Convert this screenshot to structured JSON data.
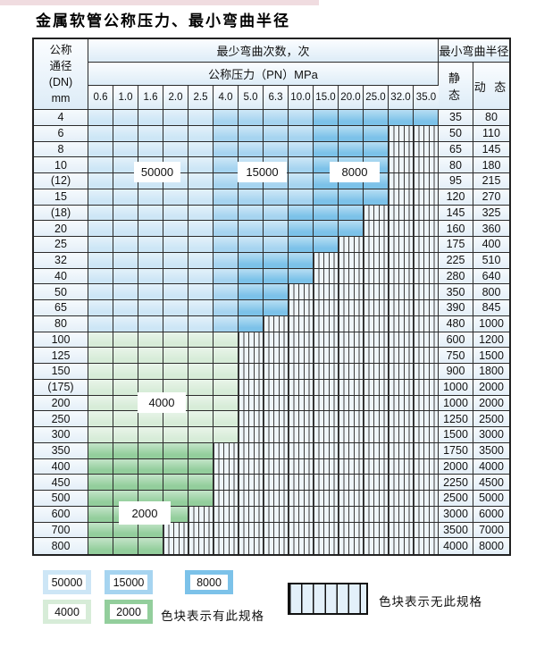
{
  "title": "金属软管公称压力、最小弯曲半径",
  "table": {
    "header": {
      "dn_lines": [
        "公称",
        "通径",
        "(DN)",
        "mm"
      ],
      "bend_cycles": "最少弯曲次数，次",
      "pressure": "公称压力（PN）MPa",
      "pressure_values": [
        "0.6",
        "1.0",
        "1.6",
        "2.0",
        "2.5",
        "4.0",
        "5.0",
        "6.3",
        "10.0",
        "15.0",
        "20.0",
        "25.0",
        "32.0",
        "35.0"
      ],
      "min_radius": "最小弯曲半径",
      "static": "静 态",
      "dynamic": "动 态"
    },
    "labels": {
      "l50000": "50000",
      "l15000": "15000",
      "l8000": "8000",
      "l4000": "4000",
      "l2000": "2000"
    },
    "rows": [
      {
        "dn": "4",
        "segments": [
          [
            "b1",
            5
          ],
          [
            "b2",
            4
          ],
          [
            "b3",
            5
          ]
        ],
        "static": "35",
        "dynamic": "80"
      },
      {
        "dn": "6",
        "segments": [
          [
            "b1",
            5
          ],
          [
            "b2",
            4
          ],
          [
            "b3",
            3
          ],
          [
            "h",
            2
          ]
        ],
        "static": "50",
        "dynamic": "110"
      },
      {
        "dn": "8",
        "segments": [
          [
            "b1",
            5
          ],
          [
            "b2",
            4
          ],
          [
            "b3",
            3
          ],
          [
            "h",
            2
          ]
        ],
        "static": "65",
        "dynamic": "145"
      },
      {
        "dn": "10",
        "segments": [
          [
            "b1",
            5
          ],
          [
            "b2",
            4
          ],
          [
            "b3",
            3
          ],
          [
            "h",
            2
          ]
        ],
        "static": "80",
        "dynamic": "180"
      },
      {
        "dn": "(12)",
        "segments": [
          [
            "b1",
            5
          ],
          [
            "b2",
            4
          ],
          [
            "b3",
            3
          ],
          [
            "h",
            2
          ]
        ],
        "static": "95",
        "dynamic": "215"
      },
      {
        "dn": "15",
        "segments": [
          [
            "b1",
            5
          ],
          [
            "b2",
            4
          ],
          [
            "b3",
            3
          ],
          [
            "h",
            2
          ]
        ],
        "static": "120",
        "dynamic": "270"
      },
      {
        "dn": "(18)",
        "segments": [
          [
            "b1",
            5
          ],
          [
            "b2",
            3
          ],
          [
            "b3",
            3
          ],
          [
            "h",
            3
          ]
        ],
        "static": "145",
        "dynamic": "325"
      },
      {
        "dn": "20",
        "segments": [
          [
            "b1",
            5
          ],
          [
            "b2",
            3
          ],
          [
            "b3",
            3
          ],
          [
            "h",
            3
          ]
        ],
        "static": "160",
        "dynamic": "360"
      },
      {
        "dn": "25",
        "segments": [
          [
            "b1",
            5
          ],
          [
            "b2",
            3
          ],
          [
            "b3",
            2
          ],
          [
            "h",
            4
          ]
        ],
        "static": "175",
        "dynamic": "400"
      },
      {
        "dn": "32",
        "segments": [
          [
            "b1",
            5
          ],
          [
            "b2",
            1
          ],
          [
            "b3",
            3
          ],
          [
            "h",
            5
          ]
        ],
        "static": "225",
        "dynamic": "510"
      },
      {
        "dn": "40",
        "segments": [
          [
            "b1",
            5
          ],
          [
            "b2",
            1
          ],
          [
            "b3",
            3
          ],
          [
            "h",
            5
          ]
        ],
        "static": "280",
        "dynamic": "640"
      },
      {
        "dn": "50",
        "segments": [
          [
            "b1",
            5
          ],
          [
            "b2",
            1
          ],
          [
            "b3",
            2
          ],
          [
            "h",
            6
          ]
        ],
        "static": "350",
        "dynamic": "800"
      },
      {
        "dn": "65",
        "segments": [
          [
            "b1",
            5
          ],
          [
            "b2",
            1
          ],
          [
            "b3",
            2
          ],
          [
            "h",
            6
          ]
        ],
        "static": "390",
        "dynamic": "845"
      },
      {
        "dn": "80",
        "segments": [
          [
            "b1",
            5
          ],
          [
            "b2",
            1
          ],
          [
            "b3",
            1
          ],
          [
            "h",
            7
          ]
        ],
        "static": "480",
        "dynamic": "1000"
      },
      {
        "dn": "100",
        "segments": [
          [
            "g1",
            6
          ],
          [
            "h",
            8
          ]
        ],
        "static": "600",
        "dynamic": "1200"
      },
      {
        "dn": "125",
        "segments": [
          [
            "g1",
            6
          ],
          [
            "h",
            8
          ]
        ],
        "static": "750",
        "dynamic": "1500"
      },
      {
        "dn": "150",
        "segments": [
          [
            "g1",
            6
          ],
          [
            "h",
            8
          ]
        ],
        "static": "900",
        "dynamic": "1800"
      },
      {
        "dn": "(175)",
        "segments": [
          [
            "g1",
            6
          ],
          [
            "h",
            8
          ]
        ],
        "static": "1000",
        "dynamic": "2000"
      },
      {
        "dn": "200",
        "segments": [
          [
            "g1",
            6
          ],
          [
            "h",
            8
          ]
        ],
        "static": "1000",
        "dynamic": "2000"
      },
      {
        "dn": "250",
        "segments": [
          [
            "g1",
            6
          ],
          [
            "h",
            8
          ]
        ],
        "static": "1250",
        "dynamic": "2500"
      },
      {
        "dn": "300",
        "segments": [
          [
            "g1",
            6
          ],
          [
            "h",
            8
          ]
        ],
        "static": "1500",
        "dynamic": "3000"
      },
      {
        "dn": "350",
        "segments": [
          [
            "g2",
            5
          ],
          [
            "h",
            9
          ]
        ],
        "static": "1750",
        "dynamic": "3500"
      },
      {
        "dn": "400",
        "segments": [
          [
            "g2",
            5
          ],
          [
            "h",
            9
          ]
        ],
        "static": "2000",
        "dynamic": "4000"
      },
      {
        "dn": "450",
        "segments": [
          [
            "g2",
            5
          ],
          [
            "h",
            9
          ]
        ],
        "static": "2250",
        "dynamic": "4500"
      },
      {
        "dn": "500",
        "segments": [
          [
            "g2",
            5
          ],
          [
            "h",
            9
          ]
        ],
        "static": "2500",
        "dynamic": "5000"
      },
      {
        "dn": "600",
        "segments": [
          [
            "g2",
            4
          ],
          [
            "h",
            10
          ]
        ],
        "static": "3000",
        "dynamic": "6000"
      },
      {
        "dn": "700",
        "segments": [
          [
            "g2",
            3
          ],
          [
            "h",
            11
          ]
        ],
        "static": "3500",
        "dynamic": "7000"
      },
      {
        "dn": "800",
        "segments": [
          [
            "g2",
            3
          ],
          [
            "h",
            11
          ]
        ],
        "static": "4000",
        "dynamic": "8000"
      }
    ]
  },
  "legend": {
    "chips": [
      {
        "label": "50000",
        "shade": "b1"
      },
      {
        "label": "15000",
        "shade": "b2"
      },
      {
        "label": "8000",
        "shade": "b3"
      },
      {
        "label": "4000",
        "shade": "g1"
      },
      {
        "label": "2000",
        "shade": "g2"
      }
    ],
    "has_spec_note": "色块表示有此规格",
    "no_spec_note": "色块表示无此规格"
  },
  "colors": {
    "blue_50000": "#cde6f6",
    "blue_15000": "#a6d4f0",
    "blue_8000": "#7cc2e9",
    "green_4000": "#d7ecd8",
    "green_2000": "#93ce9c",
    "hatch_bg": "#eef5f9",
    "hatch_line": "#3d3d3d",
    "grid_line": "#2b2b2b"
  }
}
